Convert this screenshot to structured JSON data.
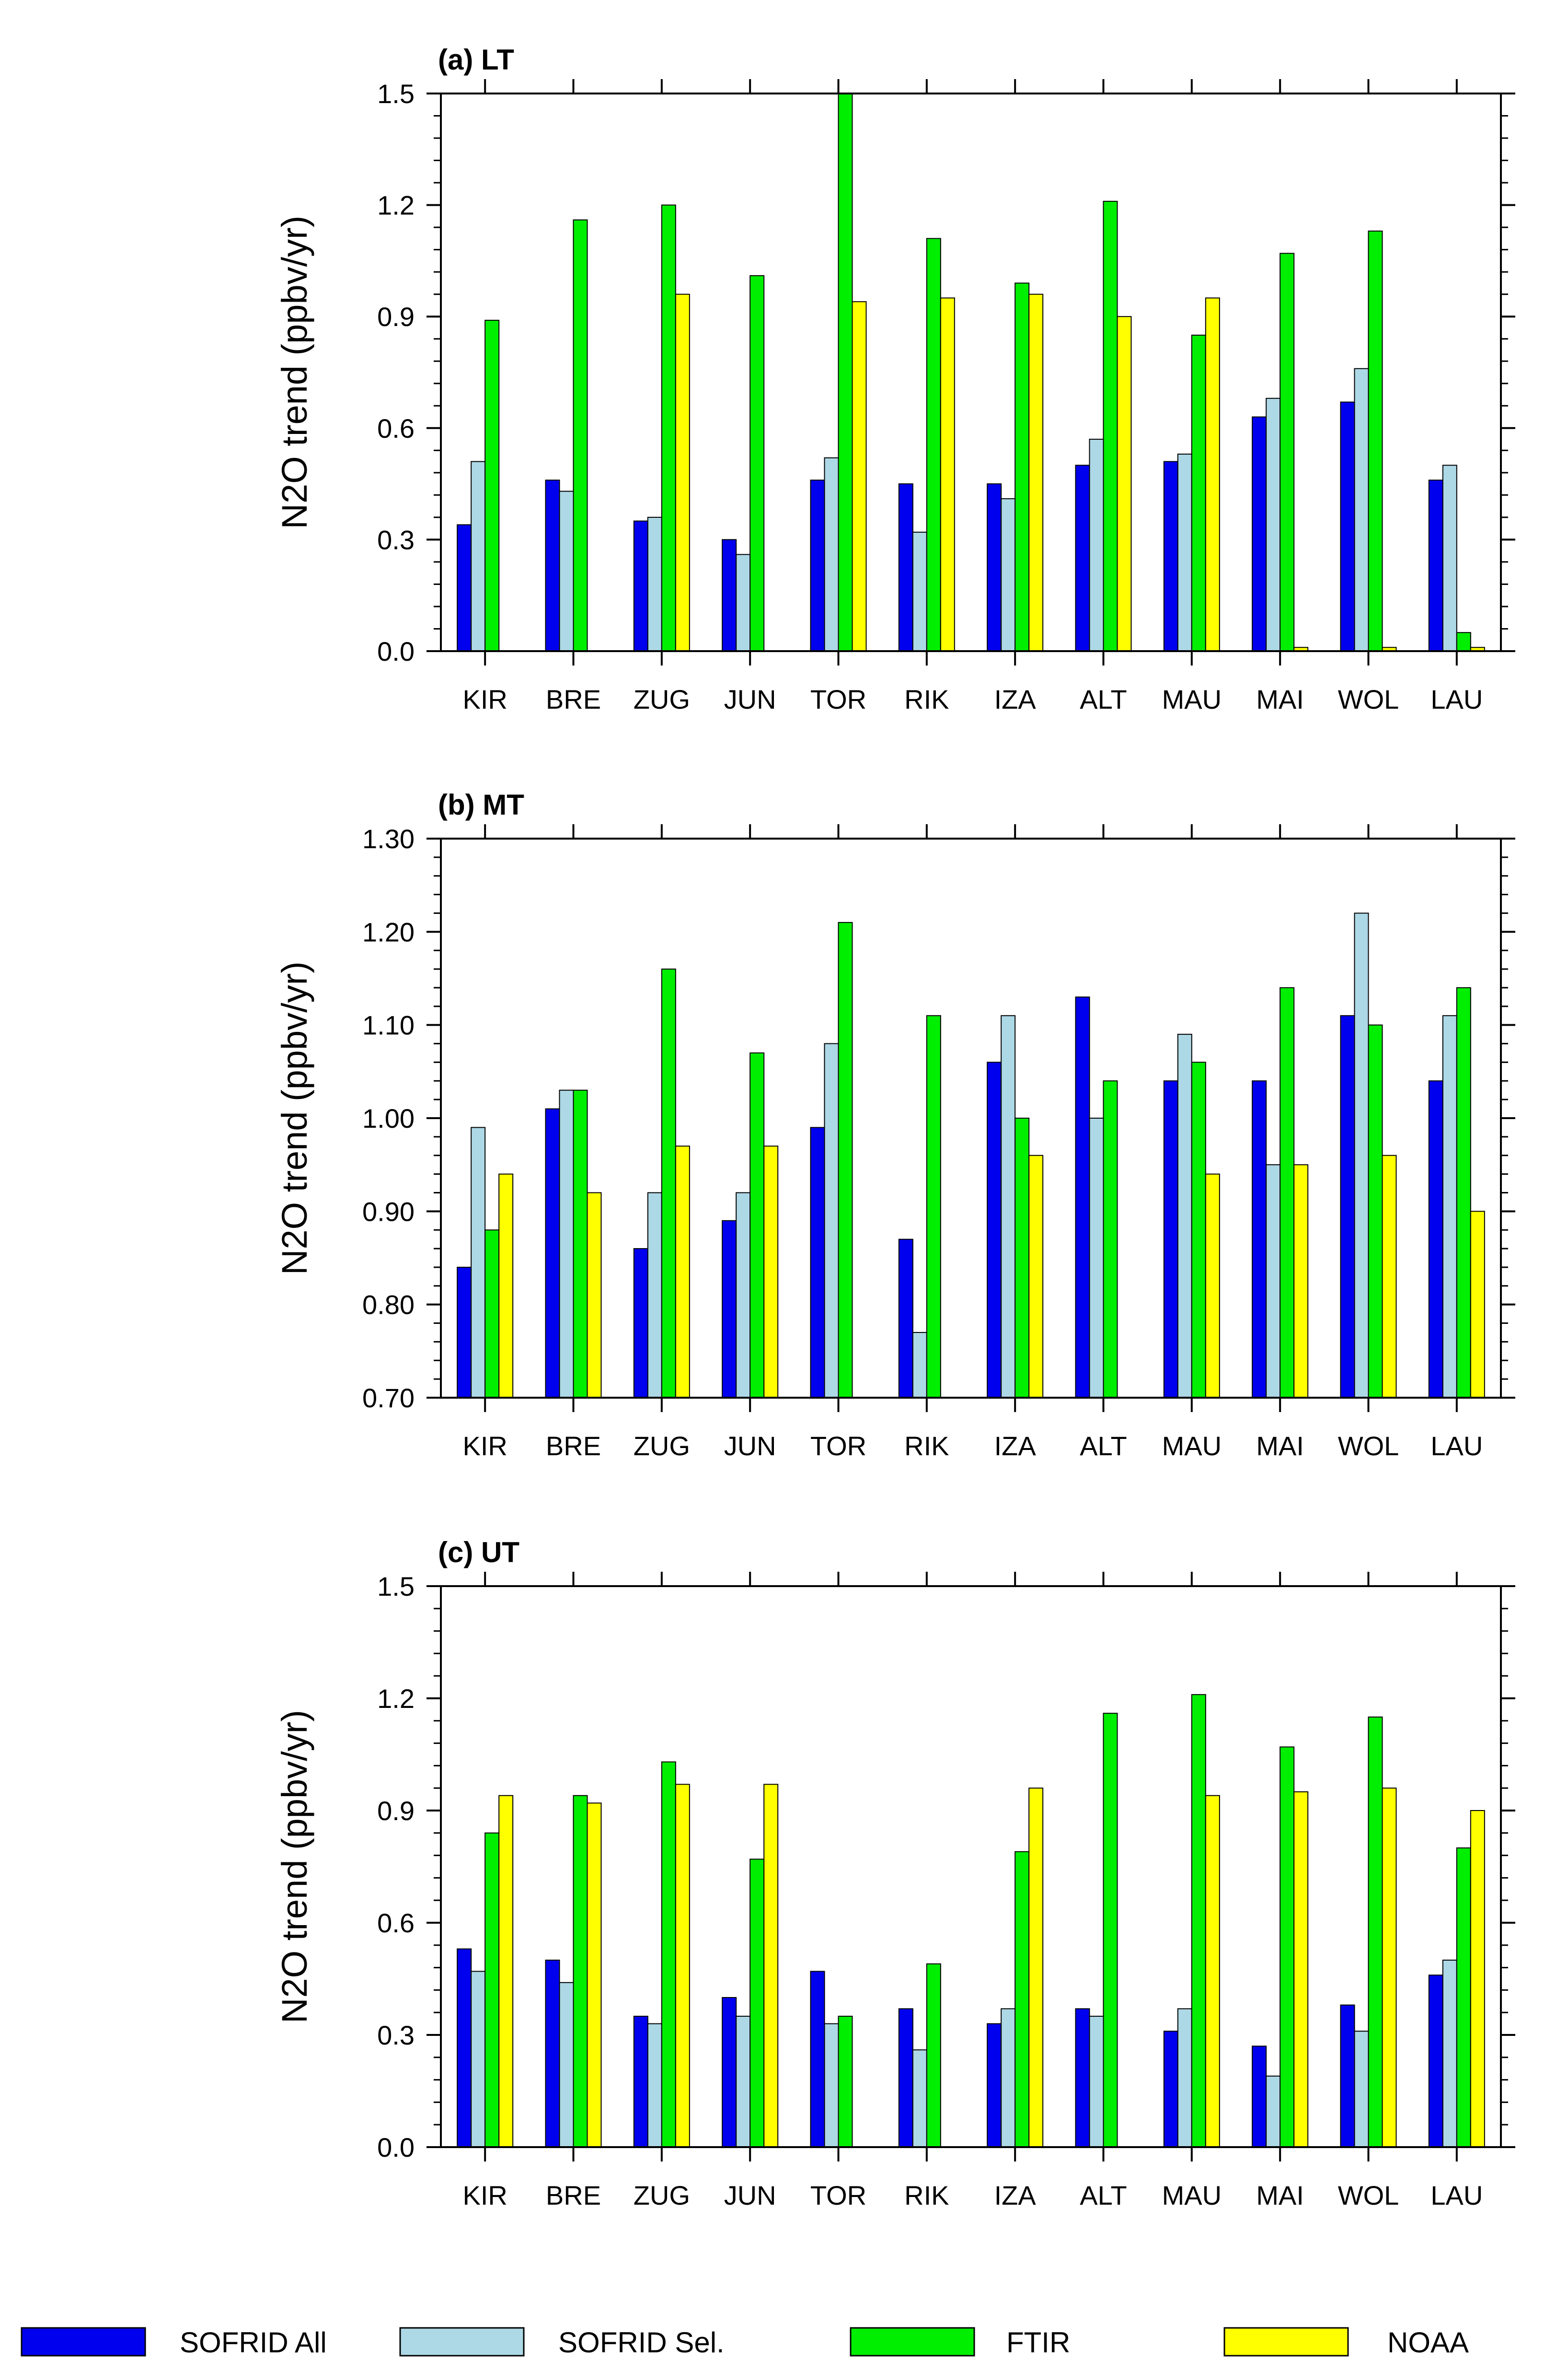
{
  "chart_data": [
    {
      "type": "bar",
      "title": "(a) LT",
      "ylabel": "N2O trend (ppbv/yr)",
      "ylim": [
        0,
        1.5
      ],
      "yticks": [
        "0.0",
        "0.3",
        "0.6",
        "0.9",
        "1.2",
        "1.5"
      ],
      "categories": [
        "KIR",
        "BRE",
        "ZUG",
        "JUN",
        "TOR",
        "RIK",
        "IZA",
        "ALT",
        "MAU",
        "MAI",
        "WOL",
        "LAU"
      ],
      "series": [
        {
          "name": "SOFRID All",
          "values": [
            0.34,
            0.46,
            0.35,
            0.3,
            0.46,
            0.45,
            0.45,
            0.5,
            0.51,
            0.63,
            0.67,
            0.46
          ]
        },
        {
          "name": "SOFRID Sel.",
          "values": [
            0.51,
            0.43,
            0.36,
            0.26,
            0.52,
            0.32,
            0.41,
            0.57,
            0.53,
            0.68,
            0.76,
            0.5
          ]
        },
        {
          "name": "FTIR",
          "values": [
            0.89,
            1.16,
            1.2,
            1.01,
            1.5,
            1.11,
            0.99,
            1.21,
            0.85,
            1.07,
            1.13,
            0.05
          ]
        },
        {
          "name": "NOAA",
          "values": [
            null,
            null,
            0.96,
            null,
            0.94,
            0.95,
            0.96,
            0.9,
            0.95,
            0.01,
            0.01,
            0.01
          ]
        }
      ]
    },
    {
      "type": "bar",
      "title": "(b) MT",
      "ylabel": "N2O trend (ppbv/yr)",
      "ylim": [
        0.7,
        1.3
      ],
      "yticks": [
        "0.70",
        "0.80",
        "0.90",
        "1.00",
        "1.10",
        "1.20",
        "1.30"
      ],
      "categories": [
        "KIR",
        "BRE",
        "ZUG",
        "JUN",
        "TOR",
        "RIK",
        "IZA",
        "ALT",
        "MAU",
        "MAI",
        "WOL",
        "LAU"
      ],
      "series": [
        {
          "name": "SOFRID All",
          "values": [
            0.84,
            1.01,
            0.86,
            0.89,
            0.99,
            0.87,
            1.06,
            1.13,
            1.04,
            1.04,
            1.11,
            1.04
          ]
        },
        {
          "name": "SOFRID Sel.",
          "values": [
            0.99,
            1.03,
            0.92,
            0.92,
            1.08,
            0.77,
            1.11,
            1.0,
            1.09,
            0.95,
            1.22,
            1.11
          ]
        },
        {
          "name": "FTIR",
          "values": [
            0.88,
            1.03,
            1.16,
            1.07,
            1.21,
            1.11,
            1.0,
            1.04,
            1.06,
            1.14,
            1.1,
            1.14
          ]
        },
        {
          "name": "NOAA",
          "values": [
            0.94,
            0.92,
            0.97,
            0.97,
            null,
            null,
            0.96,
            null,
            0.94,
            0.95,
            0.96,
            0.9
          ]
        }
      ]
    },
    {
      "type": "bar",
      "title": "(c) UT",
      "ylabel": "N2O trend (ppbv/yr)",
      "ylim": [
        0,
        1.5
      ],
      "yticks": [
        "0.0",
        "0.3",
        "0.6",
        "0.9",
        "1.2",
        "1.5"
      ],
      "categories": [
        "KIR",
        "BRE",
        "ZUG",
        "JUN",
        "TOR",
        "RIK",
        "IZA",
        "ALT",
        "MAU",
        "MAI",
        "WOL",
        "LAU"
      ],
      "series": [
        {
          "name": "SOFRID All",
          "values": [
            0.53,
            0.5,
            0.35,
            0.4,
            0.47,
            0.37,
            0.33,
            0.37,
            0.31,
            0.27,
            0.38,
            0.46
          ]
        },
        {
          "name": "SOFRID Sel.",
          "values": [
            0.47,
            0.44,
            0.33,
            0.35,
            0.33,
            0.26,
            0.37,
            0.35,
            0.37,
            0.19,
            0.31,
            0.5
          ]
        },
        {
          "name": "FTIR",
          "values": [
            0.84,
            0.94,
            1.03,
            0.77,
            0.35,
            0.49,
            0.79,
            1.16,
            1.21,
            1.07,
            1.15,
            0.8
          ]
        },
        {
          "name": "NOAA",
          "values": [
            0.94,
            0.92,
            0.97,
            0.97,
            null,
            null,
            0.96,
            null,
            0.94,
            0.95,
            0.96,
            0.9
          ]
        }
      ]
    }
  ],
  "legend": [
    {
      "name": "SOFRID All",
      "color": "#0000ee"
    },
    {
      "name": "SOFRID Sel.",
      "color": "#add8e6"
    },
    {
      "name": "FTIR",
      "color": "#00ee00"
    },
    {
      "name": "NOAA",
      "color": "#ffff00"
    }
  ]
}
